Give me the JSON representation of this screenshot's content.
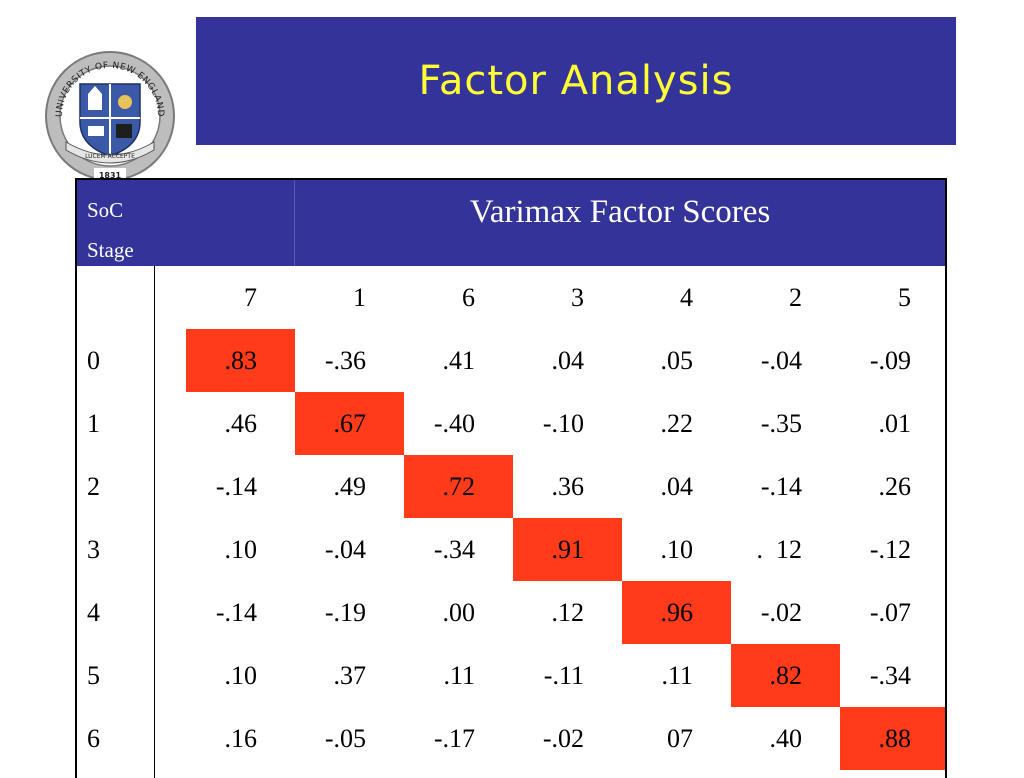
{
  "title": "Factor Analysis",
  "logo": {
    "ring_top_text": "UNIVERSITY OF NEW ENGLAND",
    "ribbon_text": "LUCEM ACCEPTE",
    "year": "1831",
    "colors": {
      "ring": "#9b9b9b",
      "shield_blue": "#3a5aa8",
      "ribbon": "#e6e6e6"
    }
  },
  "table": {
    "stage_header_line1": "SoC",
    "stage_header_line2": "Stage",
    "scores_header": "Varimax Factor Scores",
    "factor_columns": [
      "7",
      "1",
      "6",
      "3",
      "4",
      "2",
      "5"
    ],
    "rows": [
      {
        "stage": "0",
        "values": [
          ".83",
          "-.36",
          ".41",
          ".04",
          ".05",
          "-.04",
          "-.09"
        ],
        "highlight": 0
      },
      {
        "stage": "1",
        "values": [
          ".46",
          ".67",
          "-.40",
          "-.10",
          ".22",
          "-.35",
          ".01"
        ],
        "highlight": 1
      },
      {
        "stage": "2",
        "values": [
          "-.14",
          ".49",
          ".72",
          ".36",
          ".04",
          "-.14",
          ".26"
        ],
        "highlight": 2
      },
      {
        "stage": "3",
        "values": [
          ".10",
          "-.04",
          "-.34",
          ".91",
          ".10",
          ".  12",
          "-.12"
        ],
        "highlight": 3
      },
      {
        "stage": "4",
        "values": [
          "-.14",
          "-.19",
          ".00",
          ".12",
          ".96",
          "-.02",
          "-.07"
        ],
        "highlight": 4
      },
      {
        "stage": "5",
        "values": [
          ".10",
          ".37",
          ".11",
          "-.11",
          ".11",
          ".82",
          "-.34"
        ],
        "highlight": 5
      },
      {
        "stage": "6",
        "values": [
          ".16",
          "-.05",
          "-.17",
          "-.02",
          "07",
          ".40",
          ".88"
        ],
        "highlight": 6
      }
    ],
    "colors": {
      "header_bg": "#33339a",
      "header_text": "#ffffff",
      "highlight": "#ff3b1a"
    }
  }
}
